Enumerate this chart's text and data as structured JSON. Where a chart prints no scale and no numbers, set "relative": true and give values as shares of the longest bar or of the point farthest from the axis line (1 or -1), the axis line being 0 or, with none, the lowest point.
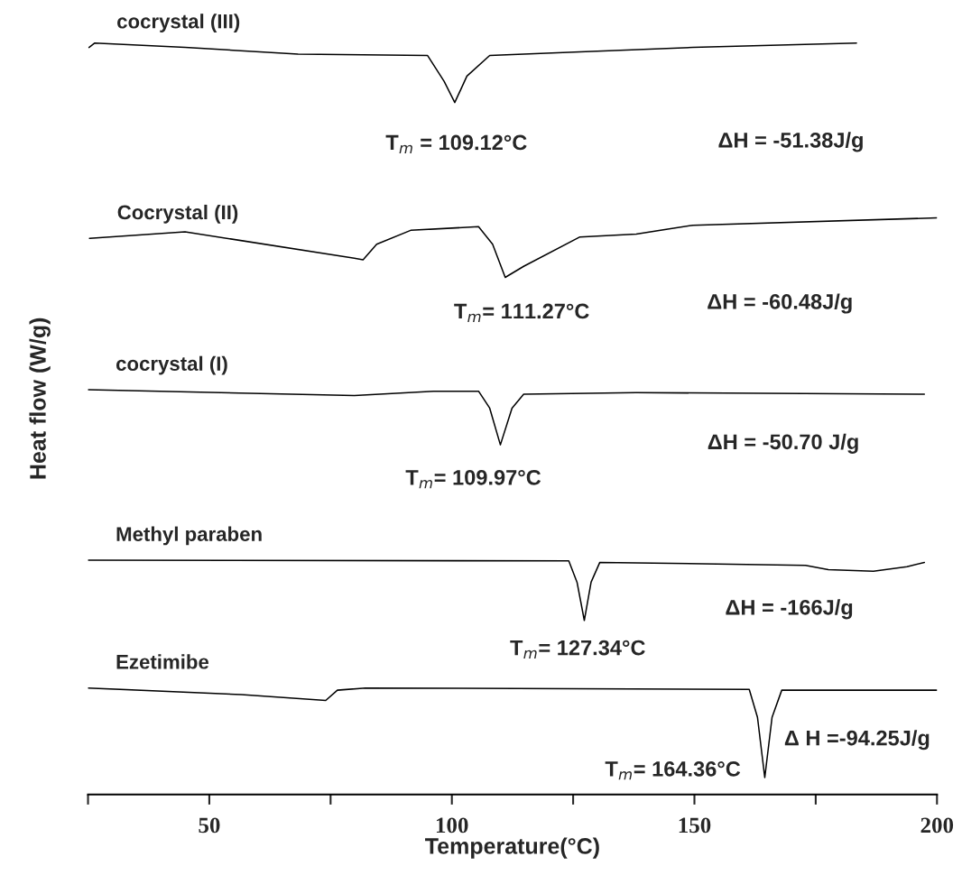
{
  "chart_data": {
    "type": "line",
    "relative": true,
    "xlabel": "Temperature(°C)",
    "ylabel": "Heat flow (W/g)",
    "xlim": [
      25,
      200
    ],
    "xticks": [
      50,
      100,
      150,
      200
    ],
    "tick_labels": "x",
    "grid": false,
    "legend": false,
    "marker": "none",
    "line_style": "solid",
    "series": [
      {
        "name": "cocrystal (III)",
        "color": "#000000",
        "x": [
          25.2,
          26.4,
          45.0,
          68.3,
          95.0,
          98.4,
          100.6,
          103.1,
          107.8,
          126.4,
          149.7,
          183.4
        ],
        "values": [
          0.994,
          1.0,
          0.994,
          0.985,
          0.983,
          0.948,
          0.919,
          0.955,
          0.983,
          0.988,
          0.994,
          1.0
        ]
      },
      {
        "name": "Cocrystal (II)",
        "color": "#000000",
        "x": [
          25.3,
          45.0,
          79.9,
          81.7,
          84.5,
          91.5,
          105.5,
          108.4,
          111.0,
          114.8,
          126.4,
          138.0,
          149.7,
          200
        ],
        "values": [
          0.734,
          0.743,
          0.707,
          0.705,
          0.726,
          0.745,
          0.75,
          0.726,
          0.681,
          0.696,
          0.736,
          0.74,
          0.752,
          0.762
        ]
      },
      {
        "name": "cocrystal (I)",
        "color": "#000000",
        "x": [
          25.0,
          79.9,
          96.2,
          105.5,
          107.8,
          110.0,
          112.4,
          114.8,
          138.0,
          197.4
        ],
        "values": [
          0.528,
          0.52,
          0.526,
          0.526,
          0.503,
          0.453,
          0.503,
          0.522,
          0.524,
          0.522
        ]
      },
      {
        "name": "Methyl paraben",
        "color": "#000000",
        "x": [
          25.0,
          124.1,
          125.8,
          127.3,
          128.7,
          130.5,
          172.9,
          177.6,
          186.9,
          193.8,
          197.4
        ],
        "values": [
          0.296,
          0.295,
          0.266,
          0.214,
          0.266,
          0.293,
          0.289,
          0.283,
          0.281,
          0.287,
          0.293
        ]
      },
      {
        "name": "Ezetimibe",
        "color": "#000000",
        "x": [
          25.0,
          56.6,
          74.0,
          76.4,
          82.2,
          161.3,
          163.0,
          164.5,
          166.0,
          168.0,
          200
        ],
        "values": [
          0.122,
          0.113,
          0.105,
          0.119,
          0.122,
          0.12,
          0.082,
          0.0,
          0.082,
          0.119,
          0.119
        ]
      }
    ],
    "annotations": [
      "T$_{m}$ = 109.12°C",
      "ΔH = -51.38J/g",
      "T$_{m}$= 111.27°C",
      "ΔH = -60.48J/g",
      "ΔH = -50.70 J/g",
      "T$_{m}$= 109.97°C",
      "ΔH = -166J/g",
      "T$_{m}$= 127.34°C",
      "T$_{m}$= 164.36°C",
      "Δ H =-94.25J/g"
    ]
  }
}
